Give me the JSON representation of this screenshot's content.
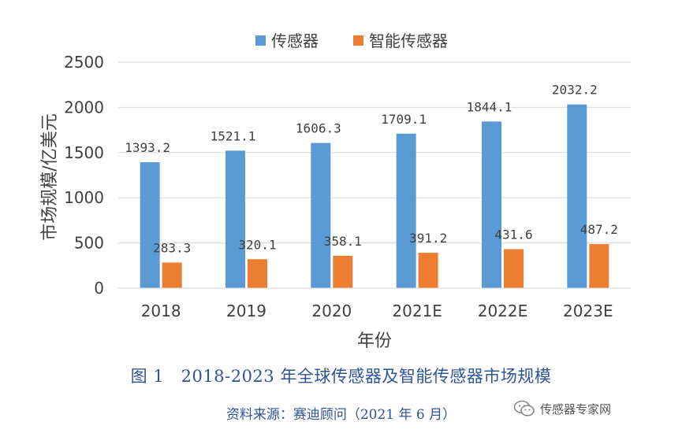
{
  "chart_data": {
    "type": "bar",
    "categories": [
      "2018",
      "2019",
      "2020",
      "2021E",
      "2022E",
      "2023E"
    ],
    "series": [
      {
        "name": "传感器",
        "color": "#5b9bd5",
        "values": [
          1393.2,
          1521.1,
          1606.3,
          1709.1,
          1844.1,
          2032.2
        ]
      },
      {
        "name": "智能传感器",
        "color": "#ed7d31",
        "values": [
          283.3,
          320.1,
          358.1,
          391.2,
          431.6,
          487.2
        ]
      }
    ],
    "data_labels": [
      [
        "1393.2",
        "1521.1",
        "1606.3",
        "1709.1",
        "1844.1",
        "2032.2"
      ],
      [
        "283.3",
        "320.1",
        "358.1",
        "391.2",
        "431.6",
        "487.2"
      ]
    ],
    "xlabel": "年份",
    "ylabel": "市场规模/亿美元",
    "ylim": [
      0,
      2500
    ],
    "yticks": [
      0,
      500,
      1000,
      1500,
      2000,
      2500
    ],
    "grid": true,
    "legend_position": "top-center"
  },
  "figure": {
    "title": "图 1　2018-2023 年全球传感器及智能传感器市场规模",
    "source": "资料来源：赛迪顾问（2021 年 6 月）"
  },
  "watermark": {
    "icon": "wechat-icon",
    "text": "传感器专家网"
  }
}
